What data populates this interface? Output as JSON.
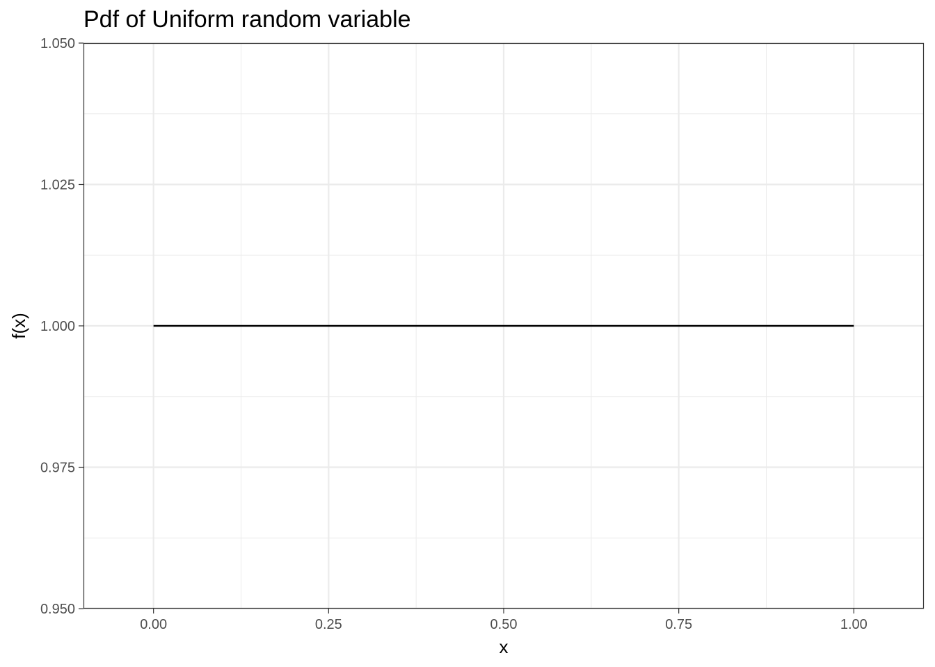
{
  "chart_data": {
    "type": "line",
    "title": "Pdf of Uniform random variable",
    "xlabel": "x",
    "ylabel": "f(x)",
    "xlim": [
      -0.1,
      1.1
    ],
    "ylim": [
      0.95,
      1.05
    ],
    "x_ticks": [
      0.0,
      0.25,
      0.5,
      0.75,
      1.0
    ],
    "x_tick_labels": [
      "0.00",
      "0.25",
      "0.50",
      "0.75",
      "1.00"
    ],
    "y_ticks": [
      0.95,
      0.975,
      1.0,
      1.025,
      1.05
    ],
    "y_tick_labels": [
      "0.950",
      "0.975",
      "1.000",
      "1.025",
      "1.050"
    ],
    "grid": true,
    "line_color": "#000000",
    "grid_color": "#ebebeb",
    "series": [
      {
        "x": [
          0.0,
          1.0
        ],
        "y": [
          1.0,
          1.0
        ]
      }
    ]
  }
}
